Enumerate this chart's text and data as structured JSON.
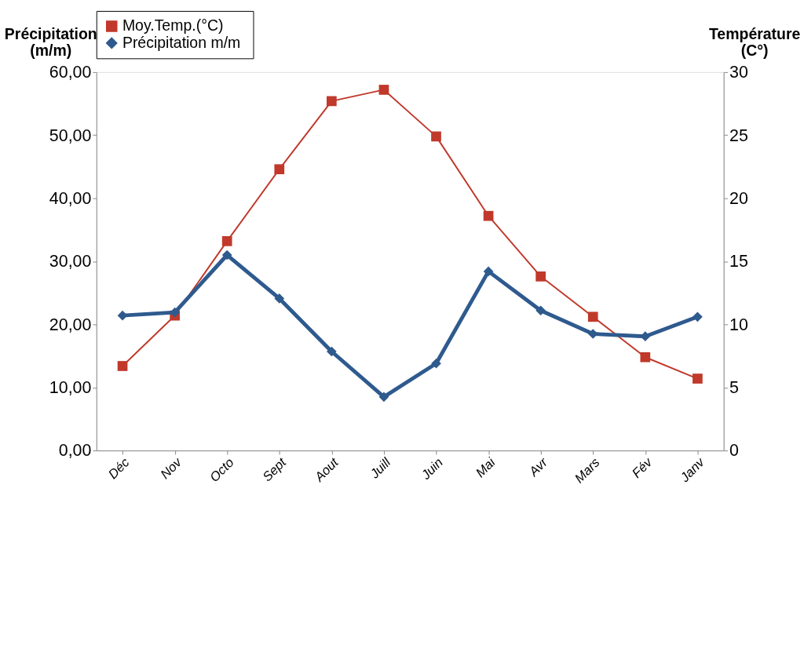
{
  "chart_data": {
    "type": "line",
    "categories": [
      "Déc",
      "Nov",
      "Octo",
      "Sept",
      "Aout",
      "Juill",
      "Juin",
      "Mai",
      "Avr",
      "Mars",
      "Fév",
      "Janv"
    ],
    "series": [
      {
        "name": "Moy.Temp.(°C)",
        "color": "#c0392b",
        "axis": "y2",
        "marker": "square",
        "values": [
          6.7,
          10.7,
          16.6,
          22.3,
          27.7,
          28.6,
          24.9,
          18.6,
          13.8,
          10.6,
          7.4,
          5.7
        ]
      },
      {
        "name": "Précipitation  m/m",
        "color": "#2e5a8e",
        "axis": "y",
        "marker": "diamond",
        "values": [
          21.4,
          21.9,
          31.0,
          24.1,
          15.7,
          8.5,
          13.8,
          28.4,
          22.2,
          18.5,
          18.1,
          21.2
        ]
      }
    ],
    "ylabel": "Précipitation\n(m/m)",
    "y2label": "Température\n(C°)",
    "ylim": [
      0,
      60
    ],
    "yticks": [
      {
        "value": 0,
        "label": "0,00"
      },
      {
        "value": 10,
        "label": "10,00"
      },
      {
        "value": 20,
        "label": "20,00"
      },
      {
        "value": 30,
        "label": "30,00"
      },
      {
        "value": 40,
        "label": "40,00"
      },
      {
        "value": 50,
        "label": "50,00"
      },
      {
        "value": 60,
        "label": "60,00"
      }
    ],
    "y2lim": [
      0,
      30
    ],
    "y2ticks": [
      0,
      5,
      10,
      15,
      20,
      25,
      30
    ],
    "grid": false,
    "legend": "top"
  }
}
